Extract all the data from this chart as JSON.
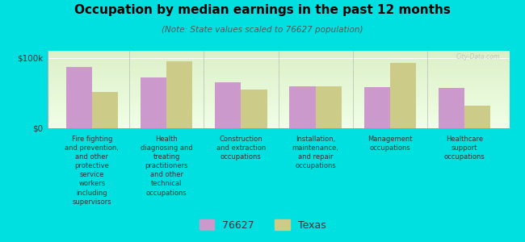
{
  "title": "Occupation by median earnings in the past 12 months",
  "subtitle": "(Note: State values scaled to 76627 population)",
  "background_color": "#00e0e0",
  "categories": [
    "Fire fighting\nand prevention,\nand other\nprotective\nservice\nworkers\nincluding\nsupervisors",
    "Health\ndiagnosing and\ntreating\npractitioners\nand other\ntechnical\noccupations",
    "Construction\nand extraction\noccupations",
    "Installation,\nmaintenance,\nand repair\noccupations",
    "Management\noccupations",
    "Healthcare\nsupport\noccupations"
  ],
  "values_76627": [
    87000,
    72000,
    65000,
    60000,
    58000,
    57000
  ],
  "values_texas": [
    52000,
    95000,
    55000,
    60000,
    93000,
    32000
  ],
  "color_76627": "#cc99cc",
  "color_texas": "#cccc88",
  "ylim": [
    0,
    110000
  ],
  "ytick_labels": [
    "$0",
    "$100k"
  ],
  "ytick_values": [
    0,
    100000
  ],
  "bar_width": 0.35,
  "legend_labels": [
    "76627",
    "Texas"
  ],
  "watermark": "City-Data.com"
}
